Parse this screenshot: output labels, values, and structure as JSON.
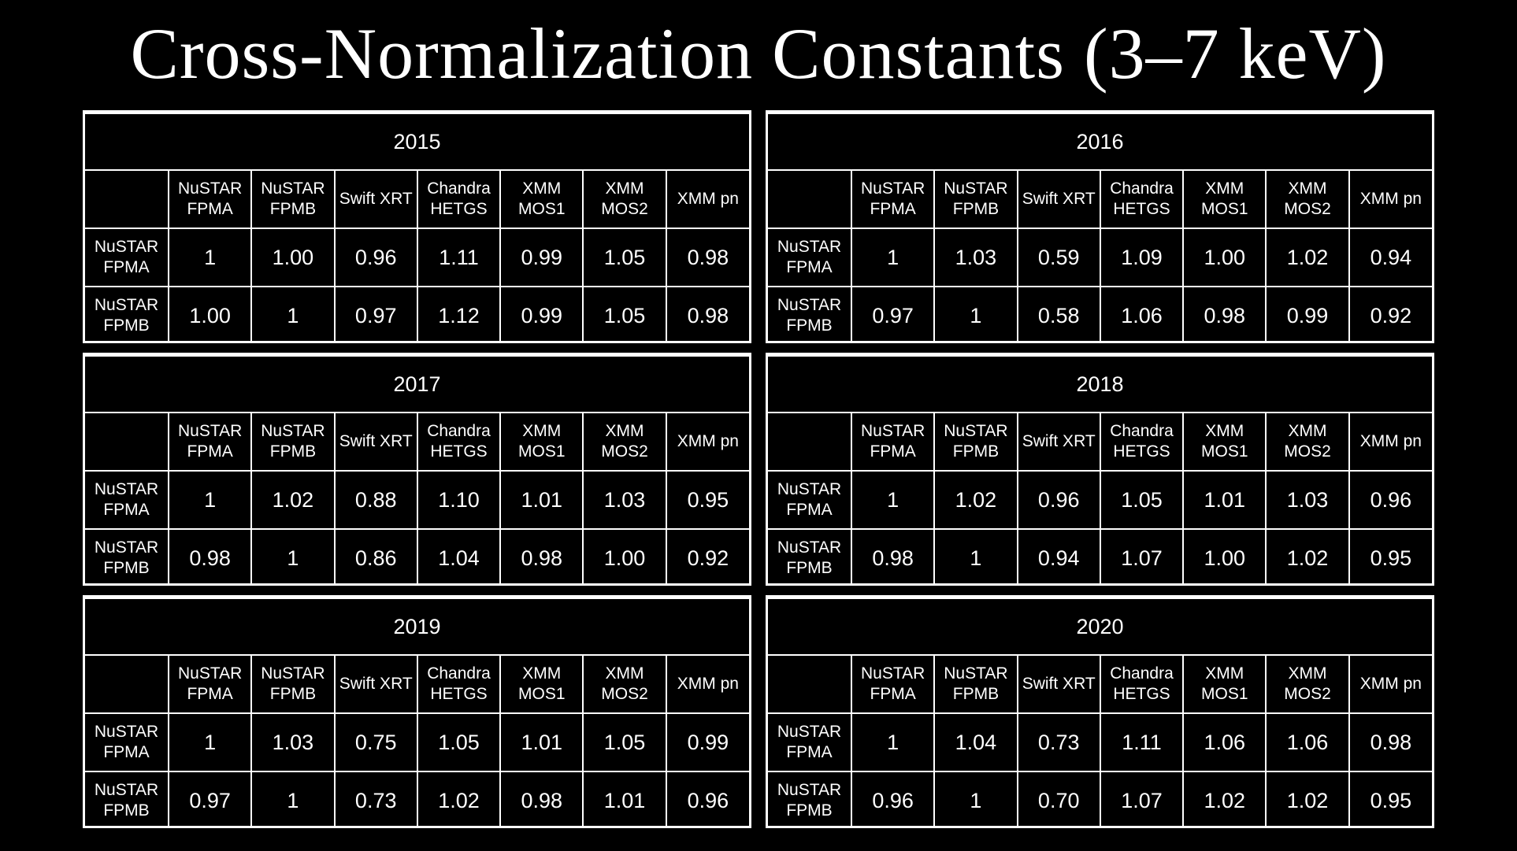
{
  "title": "Cross-Normalization Constants (3–7 keV)",
  "columns": [
    "NuSTAR\nFPMA",
    "NuSTAR\nFPMB",
    "Swift XRT",
    "Chandra\nHETGS",
    "XMM\nMOS1",
    "XMM\nMOS2",
    "XMM pn"
  ],
  "rows": [
    "NuSTAR\nFPMA",
    "NuSTAR\nFPMB"
  ],
  "tables": [
    {
      "year": "2015",
      "values": [
        [
          "1",
          "1.00",
          "0.96",
          "1.11",
          "0.99",
          "1.05",
          "0.98"
        ],
        [
          "1.00",
          "1",
          "0.97",
          "1.12",
          "0.99",
          "1.05",
          "0.98"
        ]
      ]
    },
    {
      "year": "2016",
      "values": [
        [
          "1",
          "1.03",
          "0.59",
          "1.09",
          "1.00",
          "1.02",
          "0.94"
        ],
        [
          "0.97",
          "1",
          "0.58",
          "1.06",
          "0.98",
          "0.99",
          "0.92"
        ]
      ]
    },
    {
      "year": "2017",
      "values": [
        [
          "1",
          "1.02",
          "0.88",
          "1.10",
          "1.01",
          "1.03",
          "0.95"
        ],
        [
          "0.98",
          "1",
          "0.86",
          "1.04",
          "0.98",
          "1.00",
          "0.92"
        ]
      ]
    },
    {
      "year": "2018",
      "values": [
        [
          "1",
          "1.02",
          "0.96",
          "1.05",
          "1.01",
          "1.03",
          "0.96"
        ],
        [
          "0.98",
          "1",
          "0.94",
          "1.07",
          "1.00",
          "1.02",
          "0.95"
        ]
      ]
    },
    {
      "year": "2019",
      "values": [
        [
          "1",
          "1.03",
          "0.75",
          "1.05",
          "1.01",
          "1.05",
          "0.99"
        ],
        [
          "0.97",
          "1",
          "0.73",
          "1.02",
          "0.98",
          "1.01",
          "0.96"
        ]
      ]
    },
    {
      "year": "2020",
      "values": [
        [
          "1",
          "1.04",
          "0.73",
          "1.11",
          "1.06",
          "1.06",
          "0.98"
        ],
        [
          "0.96",
          "1",
          "0.70",
          "1.07",
          "1.02",
          "1.02",
          "0.95"
        ]
      ]
    }
  ]
}
